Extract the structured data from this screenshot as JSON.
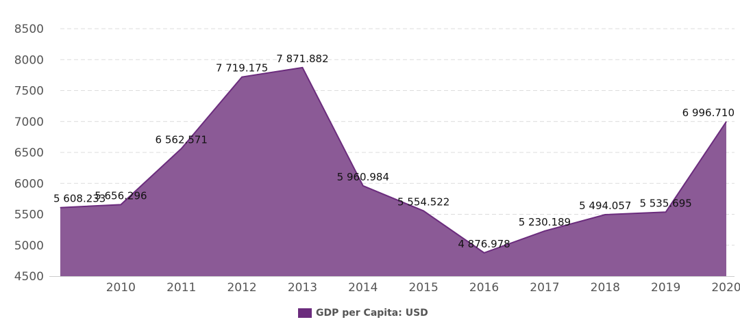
{
  "chart_data": {
    "type": "area",
    "x": [
      "2009",
      "2010",
      "2011",
      "2012",
      "2013",
      "2014",
      "2015",
      "2016",
      "2017",
      "2018",
      "2019",
      "2020"
    ],
    "x_tick_labels": [
      "2010",
      "2011",
      "2012",
      "2013",
      "2014",
      "2015",
      "2016",
      "2017",
      "2018",
      "2019",
      "2020"
    ],
    "series": [
      {
        "name": "GDP per Capita: USD",
        "values": [
          5608.233,
          5656.296,
          6562.571,
          7719.175,
          7871.882,
          5960.984,
          5554.522,
          4876.978,
          5230.189,
          5494.057,
          5535.695,
          6996.71
        ],
        "labels": [
          "5 608.233",
          "5 656.296",
          "6 562.571",
          "7 719.175",
          "7 871.882",
          "5 960.984",
          "5 554.522",
          "4 876.978",
          "5 230.189",
          "5 494.057",
          "5 535.695",
          "6 996.710"
        ]
      }
    ],
    "ylim": [
      4500,
      8500
    ],
    "y_ticks": [
      4500,
      5000,
      5500,
      6000,
      6500,
      7000,
      7500,
      8000,
      8500
    ],
    "grid": true,
    "legend_position": "bottom-center",
    "colors": {
      "fill": "#8B5A96",
      "line": "#6B2C7D",
      "legend": "#6B2C7D",
      "grid": "#dcdcdc"
    }
  }
}
